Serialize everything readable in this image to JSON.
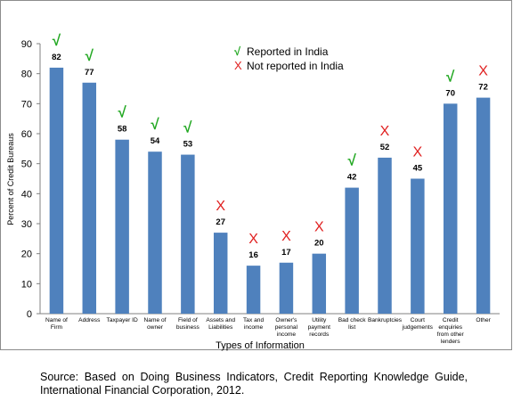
{
  "chart_data": {
    "type": "bar",
    "categories": [
      [
        "Name of",
        "Firm"
      ],
      [
        "Address"
      ],
      [
        "Taxpayer ID"
      ],
      [
        "Name of",
        "owner"
      ],
      [
        "Field of",
        "business"
      ],
      [
        "Assets and",
        "Liabilities"
      ],
      [
        "Tax and",
        "income"
      ],
      [
        "Owner's",
        "personal",
        "income"
      ],
      [
        "Utility",
        "payment",
        "records"
      ],
      [
        "Bad check",
        "list"
      ],
      [
        "Bankruptcies"
      ],
      [
        "Court",
        "judgements"
      ],
      [
        "Credit",
        "enquiries",
        "from other",
        "lenders"
      ],
      [
        "Other"
      ]
    ],
    "values": [
      82,
      77,
      58,
      54,
      53,
      27,
      16,
      17,
      20,
      42,
      52,
      45,
      70,
      72
    ],
    "reported_in_india": [
      true,
      true,
      true,
      true,
      true,
      false,
      false,
      false,
      false,
      true,
      false,
      false,
      true,
      false
    ],
    "xlabel": "Types of Information",
    "ylabel": "Percent of Credit Bureaus",
    "ylim": [
      0,
      90
    ],
    "yticks": [
      0,
      10,
      20,
      30,
      40,
      50,
      60,
      70,
      80,
      90
    ],
    "grid": false,
    "legend": {
      "placement": "top-center",
      "entries": [
        {
          "symbol": "√",
          "label": "Reported in India",
          "color": "#22a822"
        },
        {
          "symbol": "X",
          "label": "Not reported in India",
          "color": "#e02020"
        }
      ]
    },
    "bar_color": "#4f81bd"
  },
  "source": "Source: Based on Doing Business Indicators, Credit Reporting Knowledge Guide, International Financial Corporation, 2012."
}
